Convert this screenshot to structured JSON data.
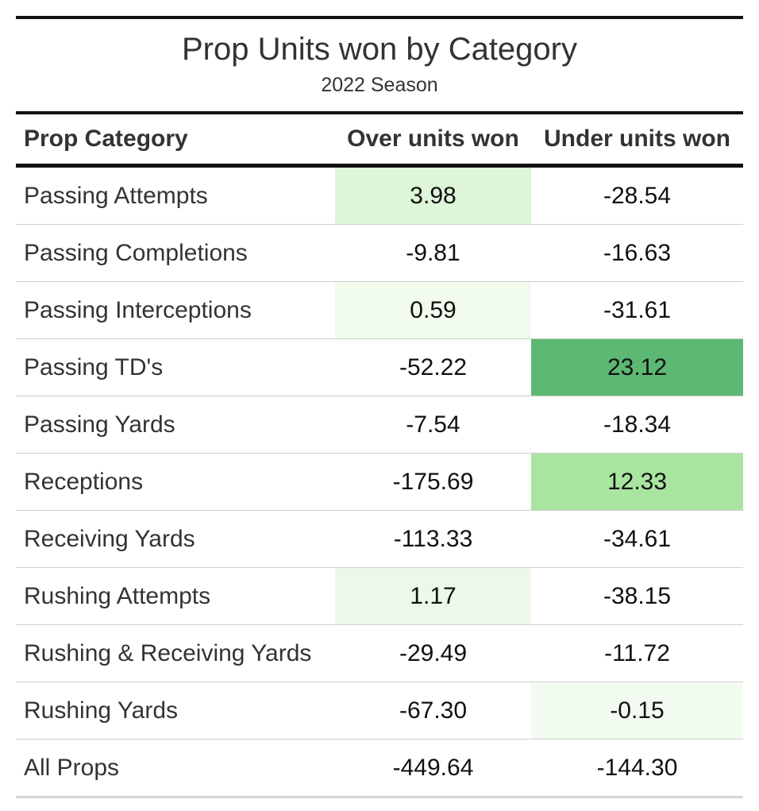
{
  "chart_data": {
    "type": "table",
    "title": "Prop Units won by Category",
    "subtitle": "2022 Season",
    "columns": [
      "Prop Category",
      "Over units won",
      "Under units won"
    ],
    "rows": [
      {
        "category": "Passing Attempts",
        "over": "3.98",
        "under": "-28.54",
        "over_color": "#ddf5d8",
        "under_color": ""
      },
      {
        "category": "Passing Completions",
        "over": "-9.81",
        "under": "-16.63",
        "over_color": "",
        "under_color": ""
      },
      {
        "category": "Passing Interceptions",
        "over": "0.59",
        "under": "-31.61",
        "over_color": "#f1fbee",
        "under_color": ""
      },
      {
        "category": "Passing TD's",
        "over": "-52.22",
        "under": "23.12",
        "over_color": "",
        "under_color": "#5cb872"
      },
      {
        "category": "Passing Yards",
        "over": "-7.54",
        "under": "-18.34",
        "over_color": "",
        "under_color": ""
      },
      {
        "category": "Receptions",
        "over": "-175.69",
        "under": "12.33",
        "over_color": "",
        "under_color": "#a9e5a0"
      },
      {
        "category": "Receiving Yards",
        "over": "-113.33",
        "under": "-34.61",
        "over_color": "",
        "under_color": ""
      },
      {
        "category": "Rushing Attempts",
        "over": "1.17",
        "under": "-38.15",
        "over_color": "#ecf9e9",
        "under_color": ""
      },
      {
        "category": "Rushing & Receiving Yards",
        "over": "-29.49",
        "under": "-11.72",
        "over_color": "",
        "under_color": ""
      },
      {
        "category": "Rushing Yards",
        "over": "-67.30",
        "under": "-0.15",
        "over_color": "",
        "under_color": "#f2fbf0"
      },
      {
        "category": "All Props",
        "over": "-449.64",
        "under": "-144.30",
        "over_color": "",
        "under_color": ""
      }
    ]
  }
}
